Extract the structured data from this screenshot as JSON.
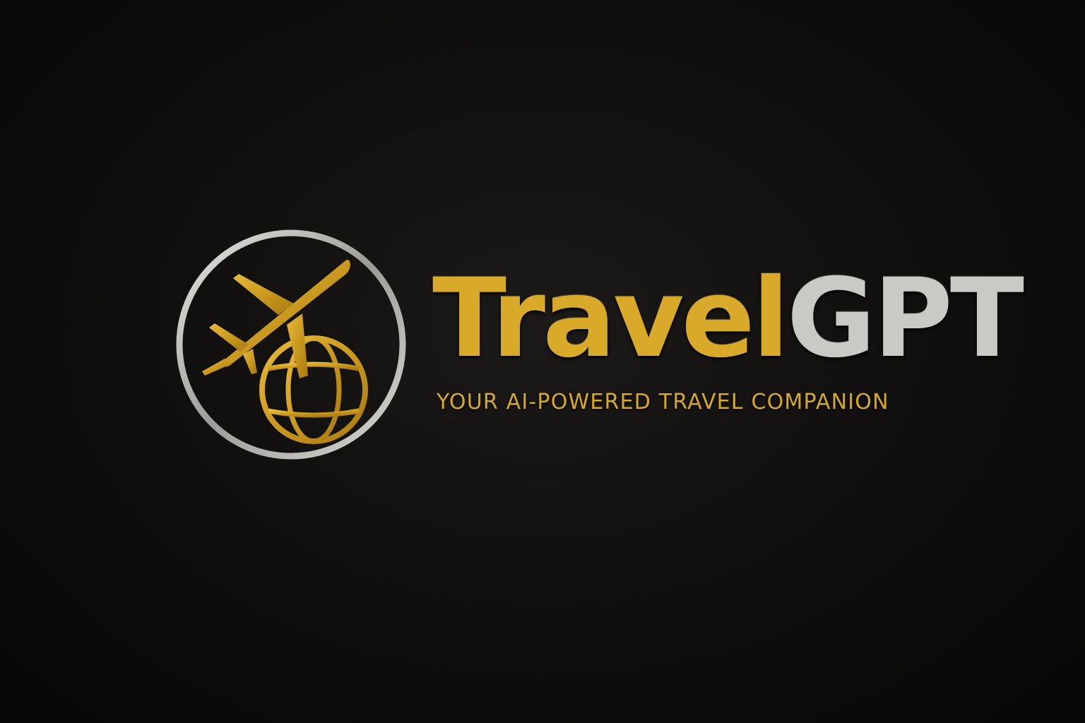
{
  "brand": {
    "name_primary": "Travel",
    "name_secondary": "GPT",
    "tagline": "YOUR AI-POWERED TRAVEL COMPANION"
  },
  "logo": {
    "icons": [
      "airplane-icon",
      "globe-icon"
    ]
  },
  "colors": {
    "background": "#0a0a0a",
    "gold": "#d9aa2a",
    "silver": "#c9c9c6"
  }
}
